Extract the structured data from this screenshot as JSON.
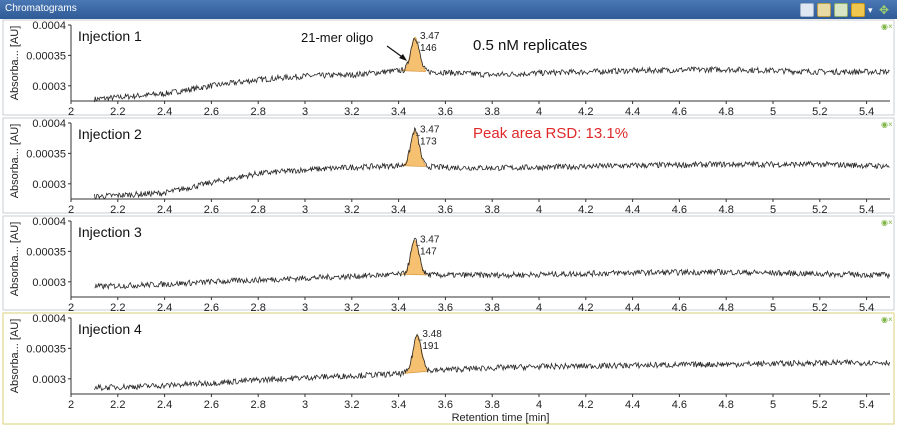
{
  "window": {
    "title": "Chromatograms"
  },
  "toolbar": {
    "icons": [
      "table-icon",
      "export-icon",
      "bar-chart-icon",
      "paint-icon",
      "dropdown-arrow-icon",
      "move-icon"
    ]
  },
  "annotations": {
    "oligo_label": "21-mer oligo",
    "replicates_label": "0.5 nM replicates",
    "rsd_label": "Peak area RSD: 13.1%",
    "rsd_color": "#e0292a"
  },
  "colors": {
    "trace": "#2b2b2b",
    "peak_fill": "#f6bd6a",
    "panel_border": "#c9cfd6",
    "active_border": "#d8d27a"
  },
  "chart_data": [
    {
      "type": "line",
      "title": "Injection 1",
      "xlabel": "",
      "ylabel": "Absorba... [AU]",
      "xlim": [
        2,
        5.5
      ],
      "ylim": [
        0.000275,
        0.0004
      ],
      "yticks": [
        "0.0004",
        "0.00035",
        "0.0003"
      ],
      "xticks": [
        "2",
        "2.2",
        "2.4",
        "2.6",
        "2.8",
        "3",
        "3.2",
        "3.4",
        "3.6",
        "3.8",
        "4",
        "4.2",
        "4.4",
        "4.6",
        "4.8",
        "5",
        "5.2",
        "5.4"
      ],
      "peak": {
        "rt": "3.47",
        "area": "146",
        "height": 0.00038
      },
      "series": [
        {
          "values": [
            [
              2.1,
              0.000278
            ],
            [
              2.4,
              0.000287
            ],
            [
              2.6,
              0.0003
            ],
            [
              2.8,
              0.00031
            ],
            [
              3.0,
              0.000316
            ],
            [
              3.2,
              0.000318
            ],
            [
              3.4,
              0.000325
            ],
            [
              3.6,
              0.000322
            ],
            [
              3.8,
              0.000318
            ],
            [
              4.0,
              0.000321
            ],
            [
              4.4,
              0.000325
            ],
            [
              4.8,
              0.000327
            ],
            [
              5.2,
              0.000323
            ],
            [
              5.5,
              0.000323
            ]
          ]
        }
      ]
    },
    {
      "type": "line",
      "title": "Injection 2",
      "xlabel": "",
      "ylabel": "Absorba... [AU]",
      "xlim": [
        2,
        5.5
      ],
      "ylim": [
        0.000275,
        0.0004
      ],
      "yticks": [
        "0.0004",
        "0.00035",
        "0.0003"
      ],
      "xticks": [
        "2",
        "2.2",
        "2.4",
        "2.6",
        "2.8",
        "3",
        "3.2",
        "3.4",
        "3.6",
        "3.8",
        "4",
        "4.2",
        "4.4",
        "4.6",
        "4.8",
        "5",
        "5.2",
        "5.4"
      ],
      "peak": {
        "rt": "3.47",
        "area": "173",
        "height": 0.000388
      },
      "series": [
        {
          "values": [
            [
              2.1,
              0.000279
            ],
            [
              2.4,
              0.000285
            ],
            [
              2.6,
              0.000302
            ],
            [
              2.8,
              0.000317
            ],
            [
              3.0,
              0.000323
            ],
            [
              3.2,
              0.000327
            ],
            [
              3.4,
              0.00033
            ],
            [
              3.6,
              0.000327
            ],
            [
              3.8,
              0.000326
            ],
            [
              4.0,
              0.000327
            ],
            [
              4.4,
              0.00033
            ],
            [
              4.8,
              0.000332
            ],
            [
              5.2,
              0.000332
            ],
            [
              5.5,
              0.000329
            ]
          ]
        }
      ]
    },
    {
      "type": "line",
      "title": "Injection 3",
      "xlabel": "",
      "ylabel": "Absorba... [AU]",
      "xlim": [
        2,
        5.5
      ],
      "ylim": [
        0.000275,
        0.0004
      ],
      "yticks": [
        "0.0004",
        "0.00035",
        "0.0003"
      ],
      "xticks": [
        "2",
        "2.2",
        "2.4",
        "2.6",
        "2.8",
        "3",
        "3.2",
        "3.4",
        "3.6",
        "3.8",
        "4",
        "4.2",
        "4.4",
        "4.6",
        "4.8",
        "5",
        "5.2",
        "5.4"
      ],
      "peak": {
        "rt": "3.47",
        "area": "147",
        "height": 0.000368
      },
      "series": [
        {
          "values": [
            [
              2.1,
              0.000292
            ],
            [
              2.4,
              0.000296
            ],
            [
              2.6,
              0.0003
            ],
            [
              2.8,
              0.000303
            ],
            [
              3.0,
              0.000306
            ],
            [
              3.2,
              0.000309
            ],
            [
              3.4,
              0.000312
            ],
            [
              3.6,
              0.000311
            ],
            [
              3.8,
              0.000311
            ],
            [
              4.0,
              0.000312
            ],
            [
              4.4,
              0.000315
            ],
            [
              4.8,
              0.000316
            ],
            [
              5.2,
              0.000313
            ],
            [
              5.5,
              0.000311
            ]
          ]
        }
      ]
    },
    {
      "type": "line",
      "title": "Injection 4",
      "xlabel": "Retention time [min]",
      "ylabel": "Absorba... [AU]",
      "xlim": [
        2,
        5.5
      ],
      "ylim": [
        0.000275,
        0.0004
      ],
      "yticks": [
        "0.0004",
        "0.00035",
        "0.0003"
      ],
      "xticks": [
        "2",
        "2.2",
        "2.4",
        "2.6",
        "2.8",
        "3",
        "3.2",
        "3.4",
        "3.6",
        "3.8",
        "4",
        "4.2",
        "4.4",
        "4.6",
        "4.8",
        "5",
        "5.2",
        "5.4"
      ],
      "peak": {
        "rt": "3.48",
        "area": "191",
        "height": 0.000372
      },
      "series": [
        {
          "values": [
            [
              2.1,
              0.000285
            ],
            [
              2.4,
              0.000289
            ],
            [
              2.6,
              0.000293
            ],
            [
              2.8,
              0.000298
            ],
            [
              3.0,
              0.000302
            ],
            [
              3.2,
              0.000305
            ],
            [
              3.4,
              0.000308
            ],
            [
              3.6,
              0.000315
            ],
            [
              3.8,
              0.000318
            ],
            [
              4.0,
              0.00032
            ],
            [
              4.4,
              0.000322
            ],
            [
              4.8,
              0.000324
            ],
            [
              5.2,
              0.000326
            ],
            [
              5.5,
              0.000327
            ]
          ]
        }
      ]
    }
  ]
}
